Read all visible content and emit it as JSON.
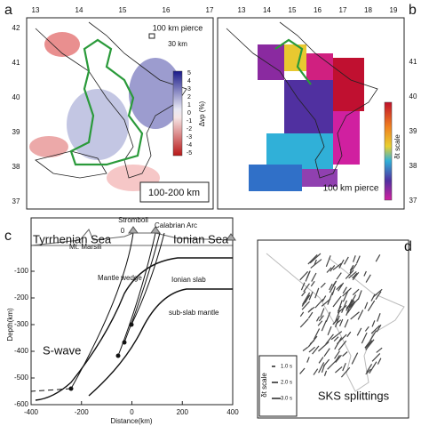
{
  "panels": {
    "a": {
      "label": "a",
      "lon_ticks": [
        13,
        14,
        15,
        16,
        17
      ],
      "lat_ticks": [
        42,
        41,
        40,
        39,
        38,
        37
      ],
      "pierce_label": "100 km pierce",
      "scale_label": "30 km",
      "colorbar_ticks": [
        5,
        4,
        3,
        2,
        1,
        0,
        -1,
        -2,
        -3,
        -4,
        -5
      ],
      "colorbar_title": "Δvp (%)",
      "depth_box": "100-200 km"
    },
    "b": {
      "label": "b",
      "lon_ticks": [
        13,
        14,
        15,
        16,
        17,
        18,
        19
      ],
      "lat_ticks": [
        41,
        40,
        39,
        38,
        37
      ],
      "colorbar_title": "δt scale",
      "pierce_label": "100 km pierce"
    },
    "c": {
      "label": "c",
      "tyrrhenian": "Tyrrhenian Sea",
      "ionian": "Ionian Sea",
      "stromboli": "Stromboli",
      "calabrian": "Calabrian Arc",
      "marsili": "Mt. Marsili",
      "zero": "0",
      "mantle_wedge": "Mantle wedge",
      "ionian_slab": "Ionian slab",
      "sub_slab": "sub-slab mantle",
      "s_wave": "S-wave",
      "y_title": "Depth(km)",
      "x_title": "Distance(km)",
      "yticks": [
        -100,
        -200,
        -300,
        -400,
        -500,
        -600
      ],
      "xticks": [
        -400,
        -200,
        0,
        200,
        400
      ]
    },
    "d": {
      "label": "d",
      "title": "SKS splittings",
      "scale_title": "δt scale",
      "scale_items": [
        "1.0 s",
        "2.0 s",
        "3.0 s"
      ]
    }
  }
}
